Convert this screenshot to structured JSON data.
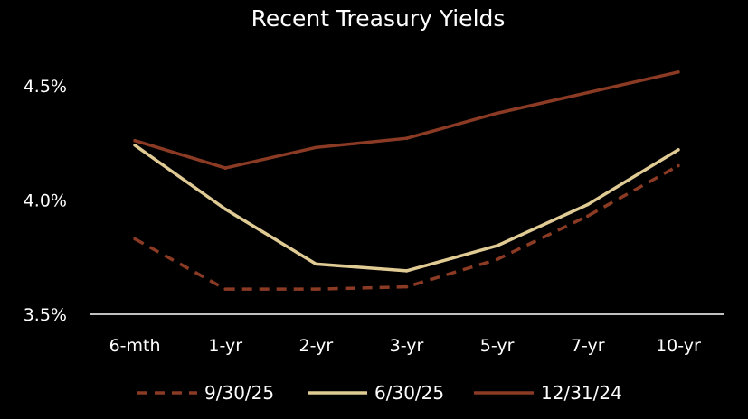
{
  "chart_data": {
    "type": "line",
    "title": "Recent Treasury Yields",
    "xlabel": "",
    "ylabel": "",
    "categories": [
      "6-mth",
      "1-yr",
      "2-yr",
      "3-yr",
      "5-yr",
      "7-yr",
      "10-yr"
    ],
    "ylim": [
      3.5,
      4.5
    ],
    "yticks": [
      3.5,
      4.0,
      4.5
    ],
    "ytick_labels": [
      "3.5%",
      "4.0%",
      "4.5%"
    ],
    "grid": false,
    "legend_position": "bottom",
    "series": [
      {
        "name": "9/30/25",
        "color": "#8B3A24",
        "dash": true,
        "values": [
          3.83,
          3.61,
          3.61,
          3.62,
          3.74,
          3.93,
          4.15
        ]
      },
      {
        "name": "6/30/25",
        "color": "#E0CB94",
        "dash": false,
        "values": [
          4.24,
          3.96,
          3.72,
          3.69,
          3.8,
          3.98,
          4.22
        ]
      },
      {
        "name": "12/31/24",
        "color": "#8B3A24",
        "dash": false,
        "values": [
          4.26,
          4.14,
          4.23,
          4.27,
          4.38,
          4.47,
          4.56
        ]
      }
    ]
  }
}
